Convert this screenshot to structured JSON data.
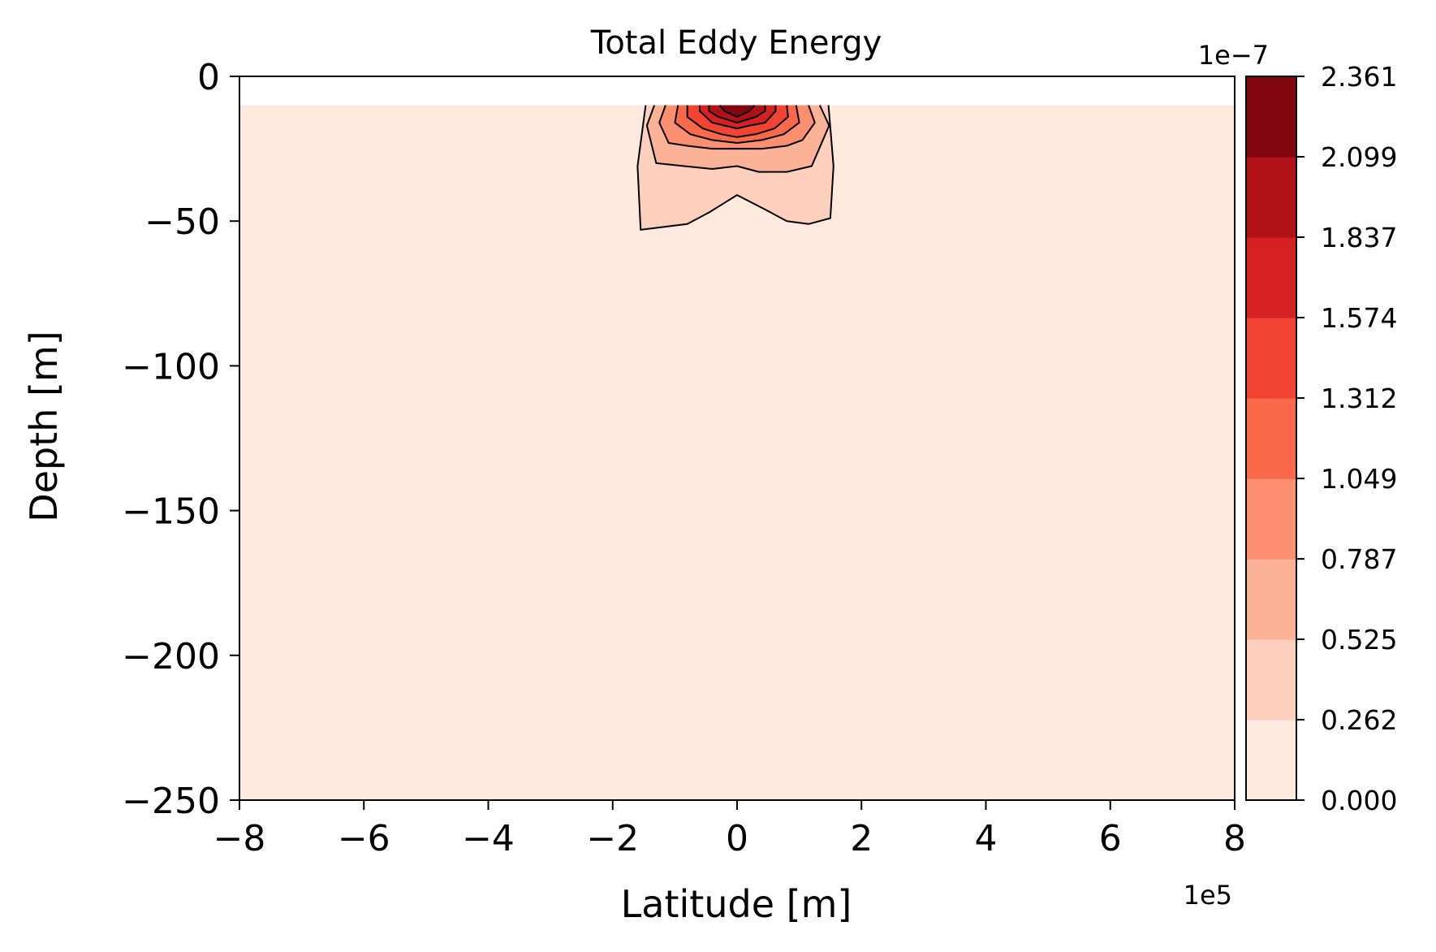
{
  "chart_data": {
    "type": "contour",
    "title": "Total Eddy Energy",
    "xlabel": "Latitude [m]",
    "ylabel": "Depth [m]",
    "xlim": [
      -8,
      8
    ],
    "ylim": [
      -250,
      0
    ],
    "x_offset_text": "1e5",
    "x_ticks": [
      -8,
      -6,
      -4,
      -2,
      0,
      2,
      4,
      6,
      8
    ],
    "x_tick_labels": [
      "−8",
      "−6",
      "−4",
      "−2",
      "0",
      "2",
      "4",
      "6",
      "8"
    ],
    "y_ticks": [
      0,
      -50,
      -100,
      -150,
      -200,
      -250
    ],
    "y_tick_labels": [
      "0",
      "−50",
      "−100",
      "−150",
      "−200",
      "−250"
    ],
    "data_top_depth": -10,
    "colorbar": {
      "offset_text": "1e−7",
      "levels": [
        0.0,
        0.262,
        0.525,
        0.787,
        1.049,
        1.312,
        1.574,
        1.837,
        2.099,
        2.361
      ],
      "level_labels": [
        "0.000",
        "0.262",
        "0.525",
        "0.787",
        "1.049",
        "1.312",
        "1.574",
        "1.837",
        "2.099",
        "2.361"
      ],
      "colors": [
        "#fee9df",
        "#fdd0bd",
        "#fcb296",
        "#fc8f6f",
        "#fa6a4a",
        "#f14432",
        "#d52121",
        "#b11218",
        "#810610"
      ]
    },
    "contours": [
      {
        "level": 0.262,
        "points": [
          [
            -1.55,
            -53
          ],
          [
            -0.8,
            -51
          ],
          [
            -0.45,
            -47
          ],
          [
            0.0,
            -41
          ],
          [
            0.45,
            -46
          ],
          [
            0.8,
            -50
          ],
          [
            1.15,
            -51
          ],
          [
            1.5,
            -49
          ],
          [
            1.55,
            -31
          ],
          [
            1.47,
            -10
          ],
          [
            -1.47,
            -10
          ],
          [
            -1.6,
            -31
          ]
        ]
      },
      {
        "level": 0.525,
        "points": [
          [
            -1.3,
            -30
          ],
          [
            -0.85,
            -31
          ],
          [
            -0.4,
            -32
          ],
          [
            0.0,
            -31
          ],
          [
            0.35,
            -33
          ],
          [
            0.8,
            -33
          ],
          [
            1.2,
            -31
          ],
          [
            1.48,
            -17
          ],
          [
            1.33,
            -10
          ],
          [
            -1.33,
            -10
          ],
          [
            -1.45,
            -17
          ]
        ]
      },
      {
        "level": 0.787,
        "points": [
          [
            -1.1,
            -23
          ],
          [
            -0.8,
            -24
          ],
          [
            -0.4,
            -25
          ],
          [
            0.0,
            -25
          ],
          [
            0.4,
            -25
          ],
          [
            0.8,
            -24
          ],
          [
            1.05,
            -22
          ],
          [
            1.25,
            -16
          ],
          [
            1.15,
            -10
          ],
          [
            -1.15,
            -10
          ],
          [
            -1.25,
            -16
          ]
        ]
      },
      {
        "level": 1.049,
        "points": [
          [
            -0.75,
            -20
          ],
          [
            -0.4,
            -22
          ],
          [
            0.0,
            -23
          ],
          [
            0.4,
            -22
          ],
          [
            0.75,
            -20
          ],
          [
            1.0,
            -16
          ],
          [
            0.95,
            -10
          ],
          [
            -0.95,
            -10
          ],
          [
            -1.0,
            -16
          ]
        ]
      },
      {
        "level": 1.312,
        "points": [
          [
            -0.55,
            -18
          ],
          [
            -0.25,
            -20
          ],
          [
            0.0,
            -21
          ],
          [
            0.3,
            -20
          ],
          [
            0.6,
            -18
          ],
          [
            0.82,
            -14
          ],
          [
            0.8,
            -10
          ],
          [
            -0.8,
            -10
          ],
          [
            -0.8,
            -14
          ]
        ]
      },
      {
        "level": 1.574,
        "points": [
          [
            -0.4,
            -16
          ],
          [
            -0.2,
            -17
          ],
          [
            0.0,
            -18
          ],
          [
            0.2,
            -17
          ],
          [
            0.45,
            -16
          ],
          [
            0.62,
            -12
          ],
          [
            0.62,
            -10
          ],
          [
            -0.6,
            -10
          ],
          [
            -0.6,
            -12
          ]
        ]
      },
      {
        "level": 1.837,
        "points": [
          [
            -0.3,
            -14
          ],
          [
            0.0,
            -16
          ],
          [
            0.3,
            -14
          ],
          [
            0.45,
            -12
          ],
          [
            0.45,
            -10
          ],
          [
            -0.45,
            -10
          ],
          [
            -0.45,
            -12
          ]
        ]
      },
      {
        "level": 2.099,
        "points": [
          [
            -0.2,
            -12
          ],
          [
            0.0,
            -14
          ],
          [
            0.2,
            -12
          ],
          [
            0.28,
            -10
          ],
          [
            -0.28,
            -10
          ]
        ]
      }
    ]
  }
}
